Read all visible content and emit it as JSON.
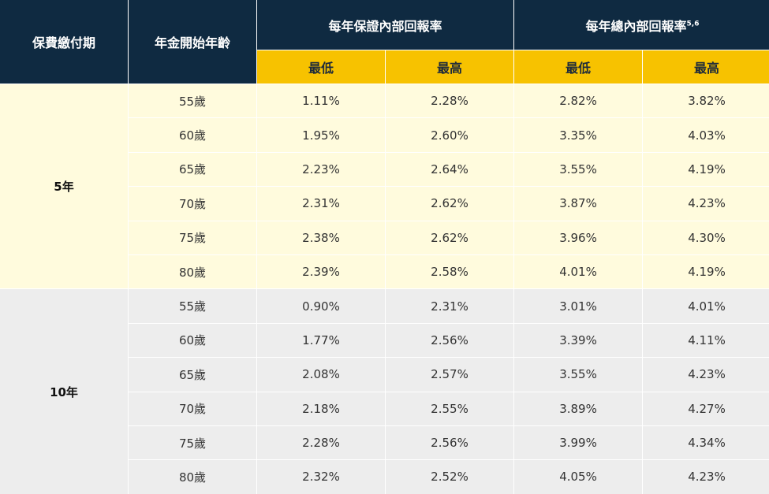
{
  "header": {
    "col_period": "保費繳付期",
    "col_age": "年金開始年齡",
    "guaranteed_group": "每年保證內部回報率",
    "total_group": "每年總內部回報率",
    "total_group_sup": "5,6",
    "min_label": "最低",
    "max_label": "最高"
  },
  "colors": {
    "header_dark": "#0f2a41",
    "header_gold": "#f7c200",
    "group1_bg": "#fffbdd",
    "group2_bg": "#ededed"
  },
  "groups": [
    {
      "period": "5年",
      "rows": [
        {
          "age": "55歲",
          "g_min": "1.11%",
          "g_max": "2.28%",
          "t_min": "2.82%",
          "t_max": "3.82%"
        },
        {
          "age": "60歲",
          "g_min": "1.95%",
          "g_max": "2.60%",
          "t_min": "3.35%",
          "t_max": "4.03%"
        },
        {
          "age": "65歲",
          "g_min": "2.23%",
          "g_max": "2.64%",
          "t_min": "3.55%",
          "t_max": "4.19%"
        },
        {
          "age": "70歲",
          "g_min": "2.31%",
          "g_max": "2.62%",
          "t_min": "3.87%",
          "t_max": "4.23%"
        },
        {
          "age": "75歲",
          "g_min": "2.38%",
          "g_max": "2.62%",
          "t_min": "3.96%",
          "t_max": "4.30%"
        },
        {
          "age": "80歲",
          "g_min": "2.39%",
          "g_max": "2.58%",
          "t_min": "4.01%",
          "t_max": "4.19%"
        }
      ]
    },
    {
      "period": "10年",
      "rows": [
        {
          "age": "55歲",
          "g_min": "0.90%",
          "g_max": "2.31%",
          "t_min": "3.01%",
          "t_max": "4.01%"
        },
        {
          "age": "60歲",
          "g_min": "1.77%",
          "g_max": "2.56%",
          "t_min": "3.39%",
          "t_max": "4.11%"
        },
        {
          "age": "65歲",
          "g_min": "2.08%",
          "g_max": "2.57%",
          "t_min": "3.55%",
          "t_max": "4.23%"
        },
        {
          "age": "70歲",
          "g_min": "2.18%",
          "g_max": "2.55%",
          "t_min": "3.89%",
          "t_max": "4.27%"
        },
        {
          "age": "75歲",
          "g_min": "2.28%",
          "g_max": "2.56%",
          "t_min": "3.99%",
          "t_max": "4.34%"
        },
        {
          "age": "80歲",
          "g_min": "2.32%",
          "g_max": "2.52%",
          "t_min": "4.05%",
          "t_max": "4.23%"
        }
      ]
    }
  ]
}
